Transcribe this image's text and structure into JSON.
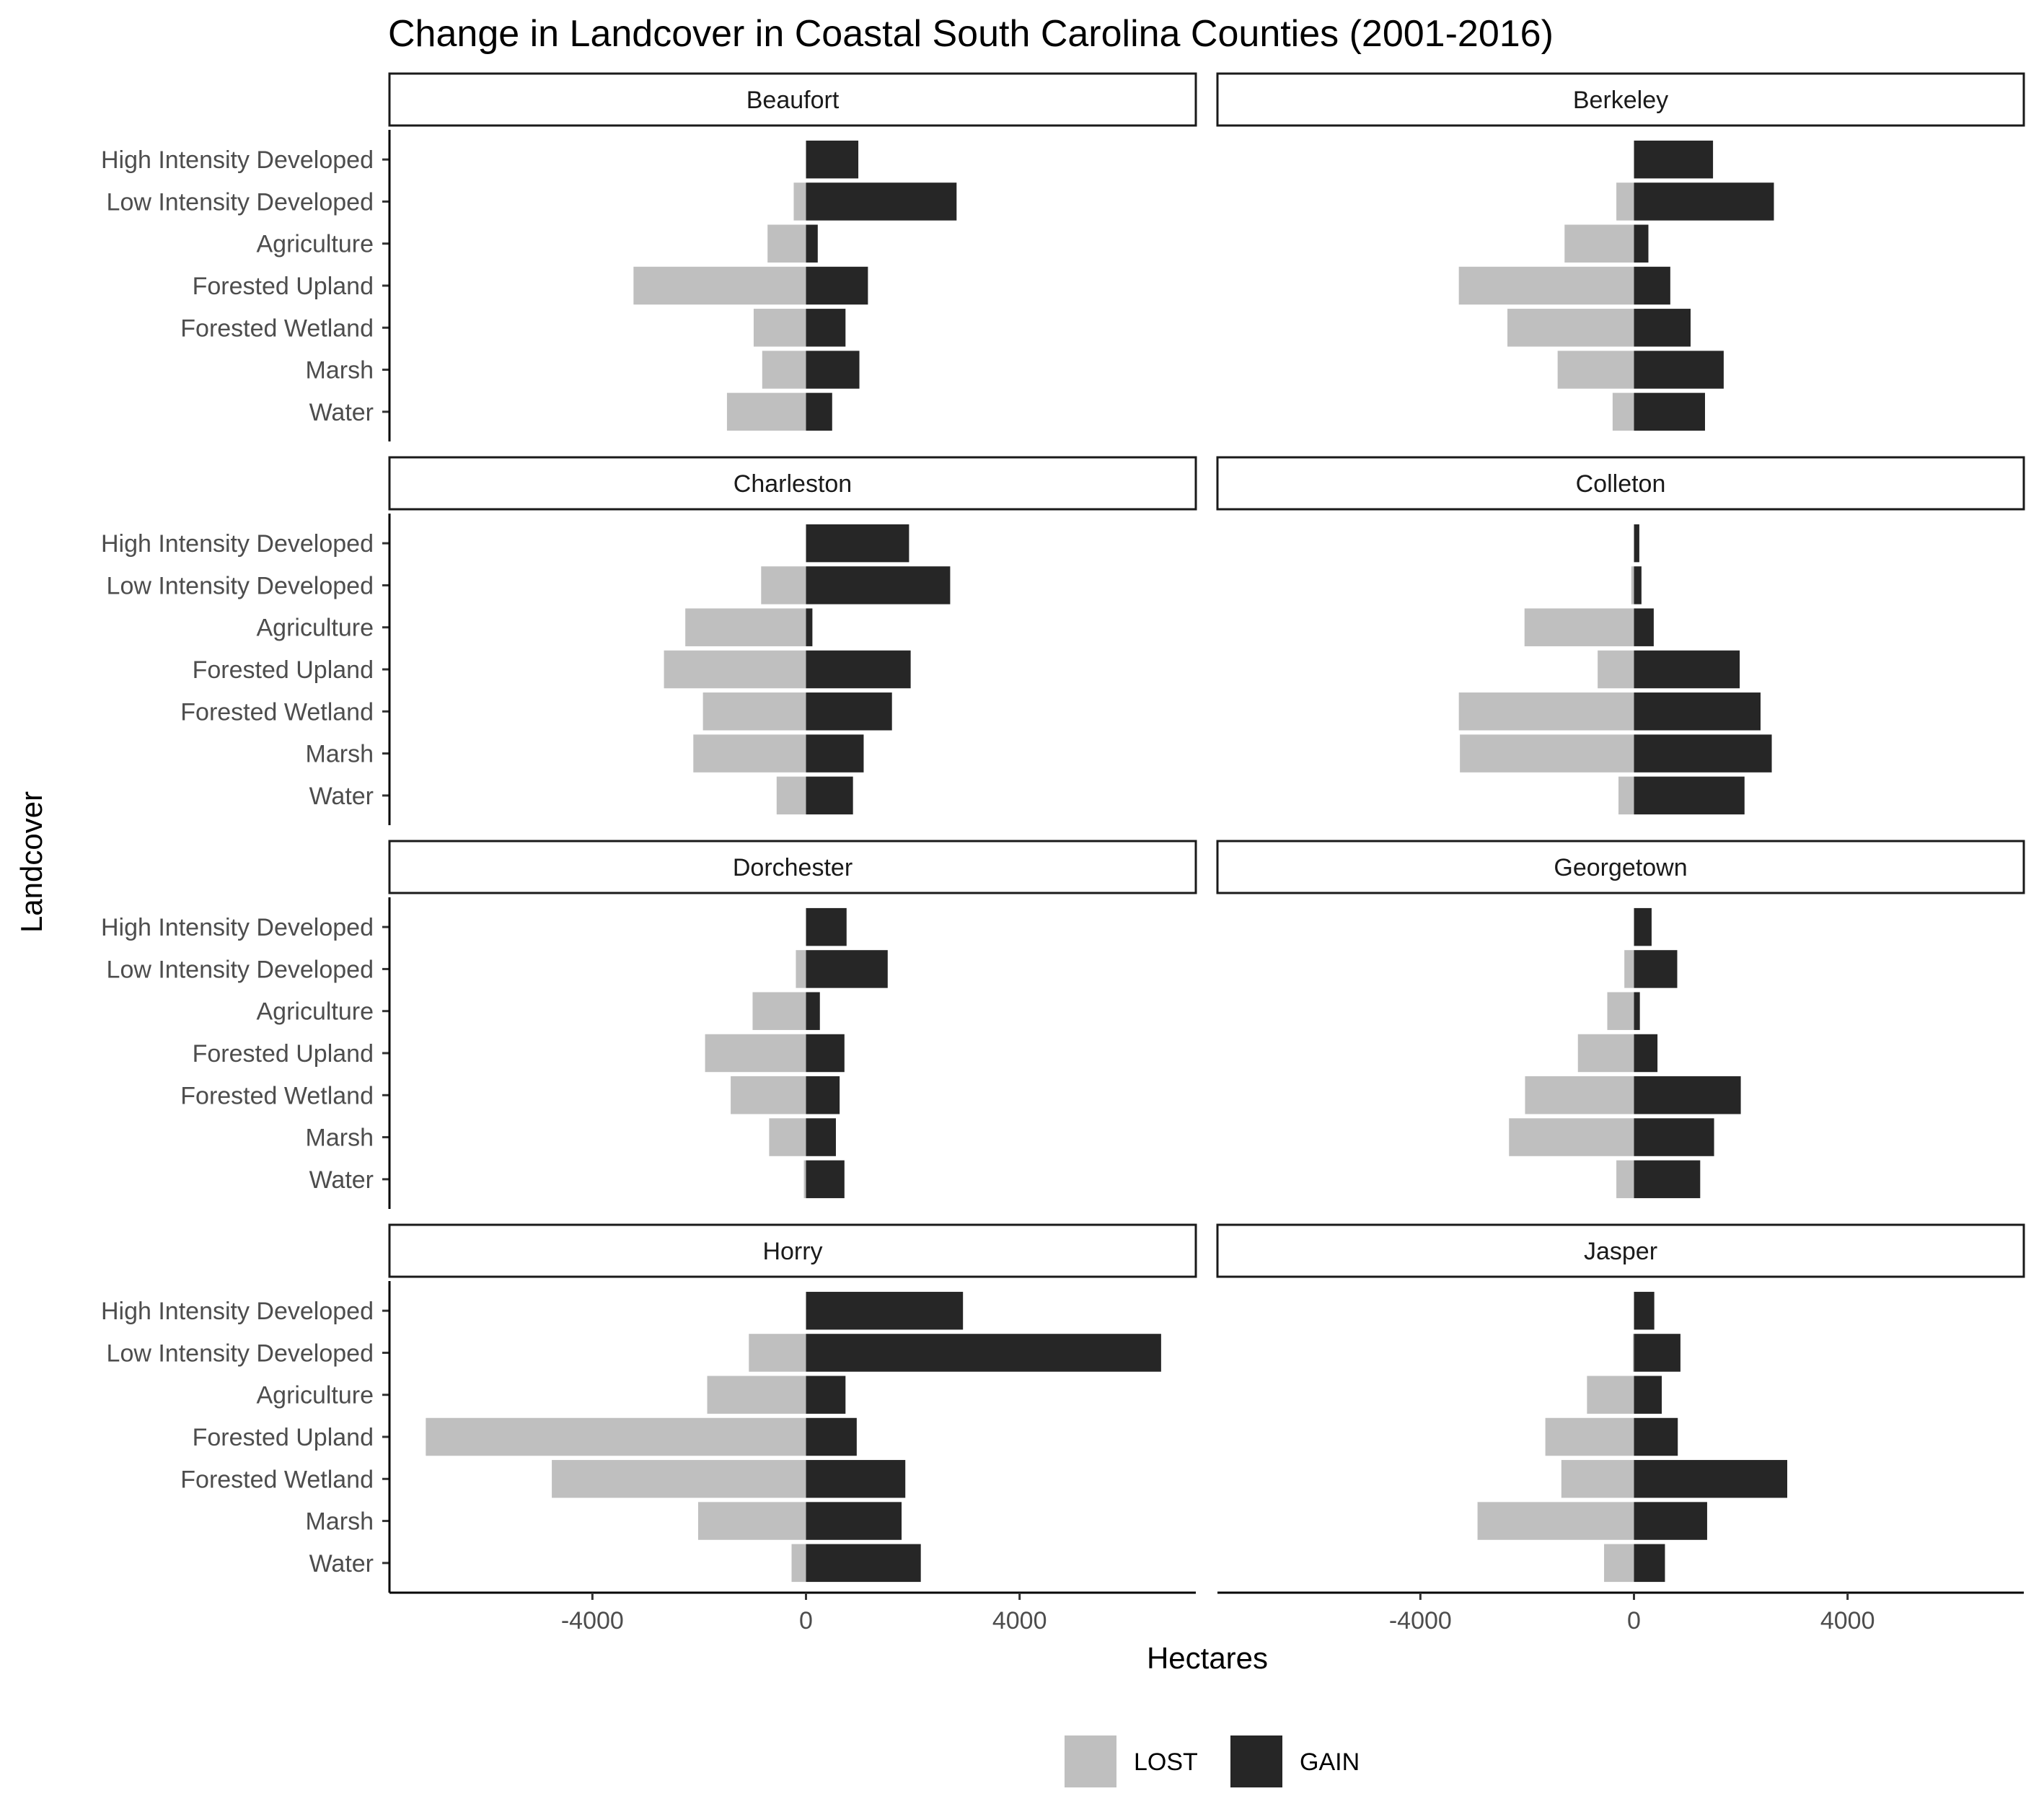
{
  "chart_data": {
    "type": "bar",
    "orientation": "horizontal",
    "faceted": true,
    "title": "Change in Landcover in Coastal South Carolina Counties (2001-2016)",
    "xlabel": "Hectares",
    "ylabel": "Landcover",
    "xlim": [
      -7800,
      7300
    ],
    "xticks": [
      -4000,
      0,
      4000
    ],
    "xtick_labels": [
      "-4000",
      "0",
      "4000"
    ],
    "categories": [
      "High Intensity Developed",
      "Low Intensity Developed",
      "Agriculture",
      "Forested Upland",
      "Forested Wetland",
      "Marsh",
      "Water"
    ],
    "legend": {
      "position": "bottom",
      "entries": [
        "LOST",
        "GAIN"
      ]
    },
    "colors": {
      "LOST": "#bfbfbf",
      "GAIN": "#262626"
    },
    "panels": [
      {
        "name": "Beaufort",
        "lost": [
          0,
          -230,
          -720,
          -3230,
          -980,
          -820,
          -1480
        ],
        "gain": [
          980,
          2820,
          220,
          1160,
          740,
          1000,
          490
        ]
      },
      {
        "name": "Berkeley",
        "lost": [
          0,
          -330,
          -1300,
          -3280,
          -2370,
          -1430,
          -400
        ],
        "gain": [
          1480,
          2620,
          270,
          680,
          1060,
          1680,
          1330
        ]
      },
      {
        "name": "Charleston",
        "lost": [
          0,
          -840,
          -2260,
          -2660,
          -1930,
          -2110,
          -550
        ],
        "gain": [
          1930,
          2700,
          120,
          1960,
          1610,
          1080,
          880
        ]
      },
      {
        "name": "Colleton",
        "lost": [
          0,
          -50,
          -2050,
          -680,
          -3280,
          -3260,
          -290
        ],
        "gain": [
          100,
          140,
          370,
          1980,
          2370,
          2580,
          2070
        ]
      },
      {
        "name": "Dorchester",
        "lost": [
          0,
          -190,
          -1000,
          -1890,
          -1410,
          -690,
          -40
        ],
        "gain": [
          760,
          1530,
          260,
          720,
          630,
          560,
          720
        ]
      },
      {
        "name": "Georgetown",
        "lost": [
          0,
          -180,
          -500,
          -1050,
          -2040,
          -2340,
          -330
        ],
        "gain": [
          330,
          810,
          110,
          440,
          2000,
          1500,
          1240
        ]
      },
      {
        "name": "Horry",
        "lost": [
          0,
          -1070,
          -1850,
          -7120,
          -4760,
          -2020,
          -270
        ],
        "gain": [
          2940,
          6650,
          740,
          950,
          1860,
          1790,
          2150
        ]
      },
      {
        "name": "Jasper",
        "lost": [
          0,
          -20,
          -880,
          -1660,
          -1360,
          -2930,
          -560
        ],
        "gain": [
          380,
          870,
          520,
          820,
          2870,
          1370,
          580
        ]
      }
    ]
  }
}
